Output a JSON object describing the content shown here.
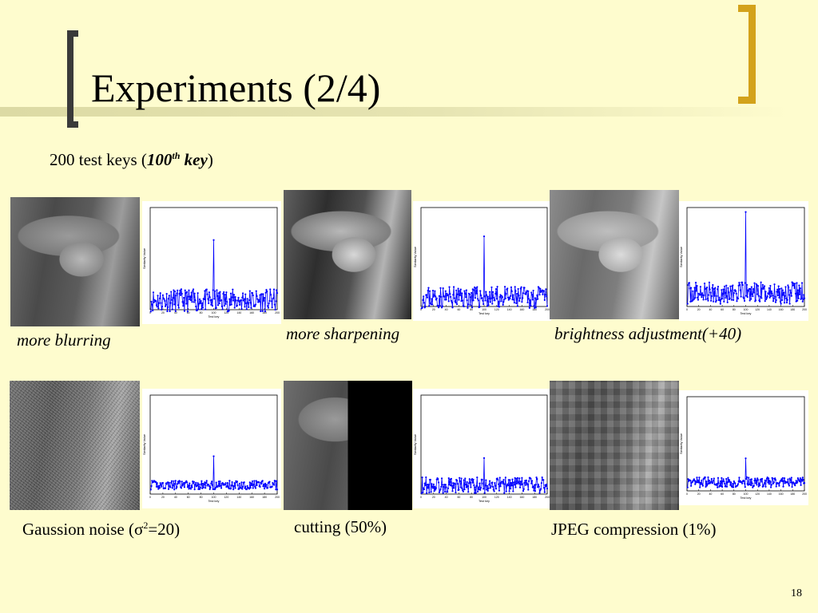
{
  "slide": {
    "title": "Experiments (2/4)",
    "subtitle": {
      "prefix": "200 test keys (",
      "key_number": "100",
      "key_sup": "th",
      "key_word": " key",
      "suffix": ")"
    },
    "page_number": "18"
  },
  "colors": {
    "background": "#FEFCCE",
    "bracket_left": "#3A3A3A",
    "bracket_right": "#D3A21B",
    "plot_line": "#0000FF"
  },
  "experiments": [
    {
      "caption": "more blurring",
      "italic": true,
      "image": "lena-blurred"
    },
    {
      "caption": "more sharpening",
      "italic": true,
      "image": "lena-sharpened"
    },
    {
      "caption": "brightness adjustment(+40)",
      "italic": true,
      "image": "lena-brightened"
    },
    {
      "caption": "Gaussion noise (σ",
      "caption_sup": "2",
      "caption_after": "=20)",
      "italic": false,
      "image": "lena-noise"
    },
    {
      "caption": "cutting (50%)",
      "italic": false,
      "image": "lena-cut"
    },
    {
      "caption": "JPEG compression (1%)",
      "italic": false,
      "image": "lena-jpeg"
    }
  ],
  "chart_data": [
    {
      "type": "line",
      "xlabel": "Test key",
      "ylabel": "Similarity Value",
      "xlim": [
        0,
        200
      ],
      "ylim": [
        -0.1,
        1.0
      ],
      "x_ticks": [
        0,
        20,
        40,
        60,
        80,
        100,
        120,
        140,
        160,
        180,
        200
      ],
      "peak_x": 100,
      "peak_y": 0.65,
      "baseline_mean": 0.0,
      "baseline_spread": 0.12,
      "seed": 11
    },
    {
      "type": "line",
      "xlabel": "Test key",
      "ylabel": "Similarity Value",
      "xlim": [
        0,
        200
      ],
      "ylim": [
        -0.1,
        1.0
      ],
      "x_ticks": [
        0,
        20,
        40,
        60,
        80,
        100,
        120,
        140,
        160,
        180,
        200
      ],
      "peak_x": 100,
      "peak_y": 0.68,
      "baseline_mean": 0.0,
      "baseline_spread": 0.12,
      "seed": 23
    },
    {
      "type": "line",
      "xlabel": "Test key",
      "ylabel": "Similarity Value",
      "xlim": [
        0,
        200
      ],
      "ylim": [
        -0.1,
        1.0
      ],
      "x_ticks": [
        0,
        20,
        40,
        60,
        80,
        100,
        120,
        140,
        160,
        180,
        200
      ],
      "peak_x": 100,
      "peak_y": 0.95,
      "baseline_mean": 0.05,
      "baseline_spread": 0.12,
      "seed": 37
    },
    {
      "type": "line",
      "xlabel": "Test key",
      "ylabel": "Similarity Value",
      "xlim": [
        0,
        200
      ],
      "ylim": [
        -0.1,
        1.0
      ],
      "x_ticks": [
        0,
        20,
        40,
        60,
        80,
        100,
        120,
        140,
        160,
        180,
        200
      ],
      "peak_x": 100,
      "peak_y": 0.32,
      "baseline_mean": 0.0,
      "baseline_spread": 0.05,
      "seed": 41
    },
    {
      "type": "line",
      "xlabel": "Test key",
      "ylabel": "Similarity Value",
      "xlim": [
        0,
        200
      ],
      "ylim": [
        -0.1,
        1.0
      ],
      "x_ticks": [
        0,
        20,
        40,
        60,
        80,
        100,
        120,
        140,
        160,
        180,
        200
      ],
      "peak_x": 100,
      "peak_y": 0.3,
      "baseline_mean": 0.0,
      "baseline_spread": 0.09,
      "seed": 53
    },
    {
      "type": "line",
      "xlabel": "Test key",
      "ylabel": "Similarity Value",
      "xlim": [
        0,
        200
      ],
      "ylim": [
        -0.1,
        1.0
      ],
      "x_ticks": [
        0,
        20,
        40,
        60,
        80,
        100,
        120,
        140,
        160,
        180,
        200
      ],
      "peak_x": 100,
      "peak_y": 0.28,
      "baseline_mean": 0.0,
      "baseline_spread": 0.06,
      "seed": 67
    }
  ]
}
